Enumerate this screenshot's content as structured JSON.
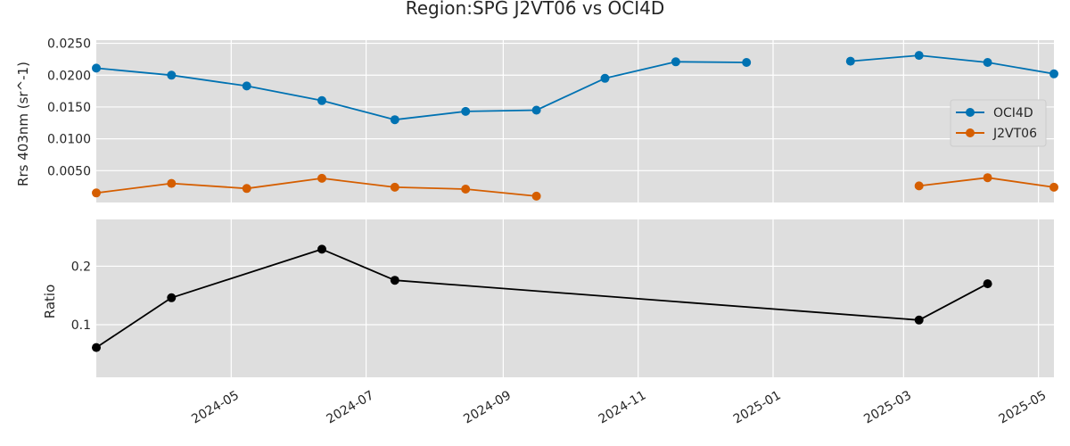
{
  "chart_data": {
    "title": "Region:SPG J2VT06 vs OCI4D",
    "x_ticks": [
      "2024-05",
      "2024-07",
      "2024-09",
      "2024-11",
      "2025-01",
      "2025-03",
      "2025-05"
    ],
    "xlim": [
      "2024-03-01",
      "2025-05-08"
    ],
    "grid": true,
    "panels": [
      {
        "type": "line",
        "ylabel": "Rrs 403nm (sr^-1)",
        "ylim": [
          0.0,
          0.0255
        ],
        "y_ticks": [
          "0.0050",
          "0.0100",
          "0.0150",
          "0.0200",
          "0.0250"
        ],
        "legend_position": "right",
        "series": [
          {
            "name": "OCI4D",
            "color": "#0072b2",
            "points": [
              {
                "x": "2024-03-01",
                "y": 0.0211
              },
              {
                "x": "2024-04-04",
                "y": 0.02
              },
              {
                "x": "2024-05-08",
                "y": 0.0183
              },
              {
                "x": "2024-06-11",
                "y": 0.016
              },
              {
                "x": "2024-07-14",
                "y": 0.013
              },
              {
                "x": "2024-08-15",
                "y": 0.0143
              },
              {
                "x": "2024-09-16",
                "y": 0.0145
              },
              {
                "x": "2024-10-17",
                "y": 0.0195
              },
              {
                "x": "2024-11-18",
                "y": 0.0221
              },
              {
                "x": "2024-12-20",
                "y": 0.022
              },
              null,
              {
                "x": "2025-02-05",
                "y": 0.0222
              },
              {
                "x": "2025-03-08",
                "y": 0.0231
              },
              {
                "x": "2025-04-08",
                "y": 0.022
              },
              {
                "x": "2025-05-08",
                "y": 0.0202
              }
            ]
          },
          {
            "name": "J2VT06",
            "color": "#d55e00",
            "points": [
              {
                "x": "2024-03-01",
                "y": 0.0015
              },
              {
                "x": "2024-04-04",
                "y": 0.003
              },
              {
                "x": "2024-05-08",
                "y": 0.0022
              },
              {
                "x": "2024-06-11",
                "y": 0.0038
              },
              {
                "x": "2024-07-14",
                "y": 0.0024
              },
              {
                "x": "2024-08-15",
                "y": 0.0021
              },
              {
                "x": "2024-09-16",
                "y": 0.001
              },
              null,
              {
                "x": "2025-03-08",
                "y": 0.0026
              },
              {
                "x": "2025-04-08",
                "y": 0.0039
              },
              {
                "x": "2025-05-08",
                "y": 0.0024
              }
            ]
          }
        ]
      },
      {
        "type": "line",
        "ylabel": "Ratio",
        "ylim": [
          0.01,
          0.28
        ],
        "y_ticks": [
          "0.1",
          "0.2"
        ],
        "series": [
          {
            "name": "",
            "color": "#000000",
            "points": [
              {
                "x": "2024-03-01",
                "y": 0.061
              },
              {
                "x": "2024-04-04",
                "y": 0.146
              },
              {
                "x": "2024-06-11",
                "y": 0.229
              },
              {
                "x": "2024-07-14",
                "y": 0.176
              },
              {
                "x": "2025-03-08",
                "y": 0.108
              },
              {
                "x": "2025-04-08",
                "y": 0.17
              }
            ]
          }
        ]
      }
    ]
  }
}
